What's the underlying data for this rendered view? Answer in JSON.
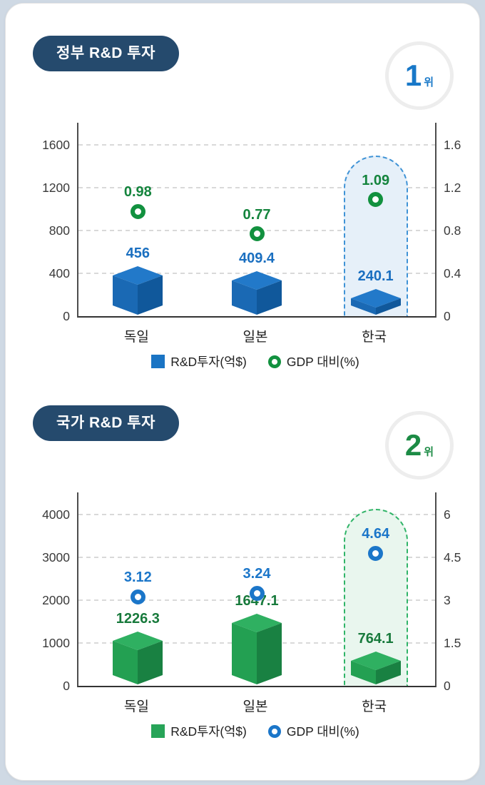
{
  "ui": {
    "background": "#cfd9e4",
    "card_bg": "#ffffff",
    "pill_bg": "#254a6d",
    "sections": [
      {
        "pill_label": "정부 R&D 투자",
        "rank_value": "1",
        "rank_suffix": "위",
        "rank_color": "#1878c8"
      },
      {
        "pill_label": "국가 R&D 투자",
        "rank_value": "2",
        "rank_suffix": "위",
        "rank_color": "#1c8b45"
      }
    ]
  },
  "chart_data": [
    {
      "type": "bar",
      "title": "정부 R&D 투자",
      "rank": "1위",
      "categories": [
        "독일",
        "일본",
        "한국"
      ],
      "series": [
        {
          "name": "R&D투자(억$)",
          "kind": "bar",
          "axis": "left",
          "values": [
            456,
            409.4,
            240.1
          ],
          "labels": [
            "456",
            "409.4",
            "240.1"
          ],
          "color": "#1a74c4",
          "label_color": "#1a6fc0",
          "colors": {
            "top": "#2279c9",
            "left": "#1a69b4",
            "right": "#10589b"
          }
        },
        {
          "name": "GDP 대비(%)",
          "kind": "marker",
          "axis": "right",
          "values": [
            0.98,
            0.77,
            1.09
          ],
          "labels": [
            "0.98",
            "0.77",
            "1.09"
          ],
          "color": "#12913f",
          "label_color": "#14843d"
        }
      ],
      "left_axis": {
        "ticks": [
          0,
          400,
          800,
          1200,
          1600
        ],
        "range": [
          0,
          1800
        ]
      },
      "right_axis": {
        "ticks": [
          0,
          0.4,
          0.8,
          1.2,
          1.6
        ],
        "range": [
          0,
          1.8
        ]
      },
      "highlight": {
        "category": "한국",
        "border": "#3f93d6",
        "bg": "#e6f0f9"
      },
      "legend": [
        "R&D투자(억$)",
        "GDP 대비(%)"
      ],
      "grid": "dashed-horizontal",
      "legend_position": "bottom-center"
    },
    {
      "type": "bar",
      "title": "국가 R&D 투자",
      "rank": "2위",
      "categories": [
        "독일",
        "일본",
        "한국"
      ],
      "series": [
        {
          "name": "R&D투자(억$)",
          "kind": "bar",
          "axis": "left",
          "values": [
            1226.3,
            1647.1,
            764.1
          ],
          "labels": [
            "1226.3",
            "1647.1",
            "764.1"
          ],
          "color": "#27a458",
          "label_color": "#187a3c",
          "colors": {
            "top": "#2fb061",
            "left": "#23a052",
            "right": "#198142"
          }
        },
        {
          "name": "GDP 대비(%)",
          "kind": "marker",
          "axis": "right",
          "values": [
            3.12,
            3.24,
            4.64
          ],
          "labels": [
            "3.12",
            "3.24",
            "4.64"
          ],
          "color": "#1b76c9",
          "label_color": "#1b76c9"
        }
      ],
      "left_axis": {
        "ticks": [
          0,
          1000,
          2000,
          3000,
          4000
        ],
        "range": [
          0,
          4500
        ]
      },
      "right_axis": {
        "ticks": [
          0,
          1.5,
          3,
          4.5,
          6
        ],
        "range": [
          0,
          6.75
        ]
      },
      "highlight": {
        "category": "한국",
        "border": "#30b468",
        "bg": "#e9f6ee"
      },
      "legend": [
        "R&D투자(억$)",
        "GDP 대비(%)"
      ],
      "grid": "dashed-horizontal",
      "legend_position": "bottom-center"
    }
  ]
}
